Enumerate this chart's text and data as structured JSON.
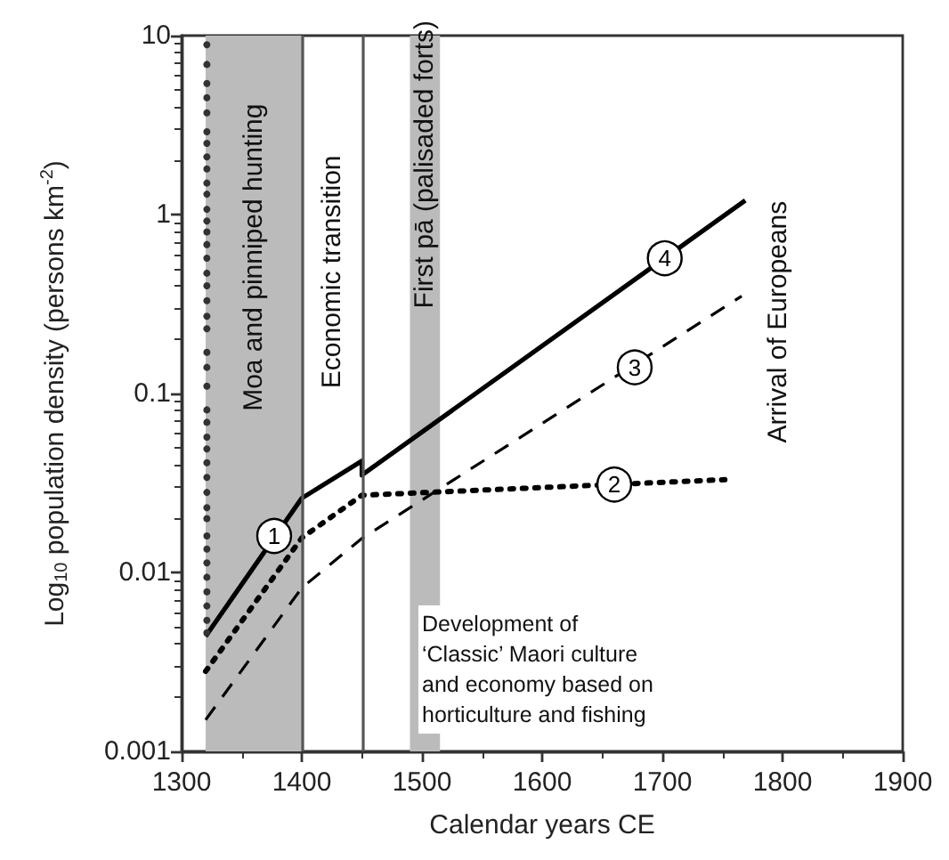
{
  "chart_data": {
    "type": "line",
    "xlabel": "Calendar years CE",
    "ylabel": "Log$_{10}$ population density (persons km$^{-2}$)",
    "xlim": [
      1300,
      1900
    ],
    "xticks": [
      1300,
      1400,
      1500,
      1600,
      1700,
      1800,
      1900
    ],
    "ylim": [
      0.001,
      10
    ],
    "yticks": [
      0.001,
      0.01,
      0.1,
      1,
      10
    ],
    "log": "y",
    "grid": false,
    "series": [
      {
        "color": "#000000",
        "line_style": "solid",
        "x": [
          1320,
          1400,
          1450,
          1450,
          1769
        ],
        "values": [
          0.0044,
          0.026,
          0.042,
          0.035,
          1.2
        ]
      },
      {
        "color": "#000000",
        "line_style": "dotted",
        "x": [
          1320,
          1400,
          1450,
          1752
        ],
        "values": [
          0.0028,
          0.0156,
          0.027,
          0.033
        ]
      },
      {
        "color": "#000000",
        "line_style": "dashed",
        "x": [
          1320,
          1400,
          1450,
          1766
        ],
        "values": [
          0.0015,
          0.0082,
          0.0155,
          0.35
        ]
      },
      {
        "type": "scatter",
        "color": "#333333",
        "marker": "circle",
        "x": [
          1321,
          1321,
          1321,
          1321,
          1321,
          1321,
          1321,
          1321,
          1321,
          1321,
          1321,
          1321,
          1321,
          1321,
          1321,
          1321,
          1321,
          1321,
          1321,
          1321,
          1321,
          1321,
          1321,
          1321,
          1321,
          1321,
          1321,
          1321,
          1321,
          1321,
          1321,
          1321,
          1321,
          1321,
          1321,
          1321,
          1321,
          1321,
          1321,
          1321,
          1321
        ],
        "values": [
          8.9,
          6.9,
          5.4,
          4.5,
          3.7,
          2.9,
          2.5,
          2.1,
          1.8,
          1.5,
          1.3,
          1.07,
          0.92,
          0.8,
          0.68,
          0.57,
          0.47,
          0.4,
          0.33,
          0.27,
          0.23,
          0.17,
          0.14,
          0.11,
          0.081,
          0.069,
          0.057,
          0.049,
          0.041,
          0.034,
          0.028,
          0.023,
          0.02,
          0.016,
          0.0135,
          0.0113,
          0.0094,
          0.0078,
          0.0065,
          0.0054,
          0.0046
        ]
      }
    ],
    "bands": [
      {
        "axis": "x",
        "from": 1320,
        "to": 1400,
        "label": "Moa and pinniped hunting",
        "color": "#bbbbbb"
      },
      {
        "axis": "x",
        "from": 1490,
        "to": 1515,
        "label": "First pā (palisaded forts)",
        "color": "#bbbbbb"
      }
    ],
    "ref_lines": [
      {
        "axis": "x",
        "value": 1400,
        "label": "Economic transition",
        "color": "#555555"
      },
      {
        "axis": "x",
        "value": 1450,
        "label": null,
        "color": "#555555"
      }
    ],
    "annotations": [
      {
        "text": "1",
        "x": 1377,
        "y": 0.016
      },
      {
        "text": "2",
        "x": 1660,
        "y": 0.031
      },
      {
        "text": "3",
        "x": 1677,
        "y": 0.14
      },
      {
        "text": "4",
        "x": 1702,
        "y": 0.57
      },
      "Arrival of Europeans",
      "Development of\n‘Classic’ Maori culture\nand economy based on\nhorticulture and fishing"
    ]
  }
}
